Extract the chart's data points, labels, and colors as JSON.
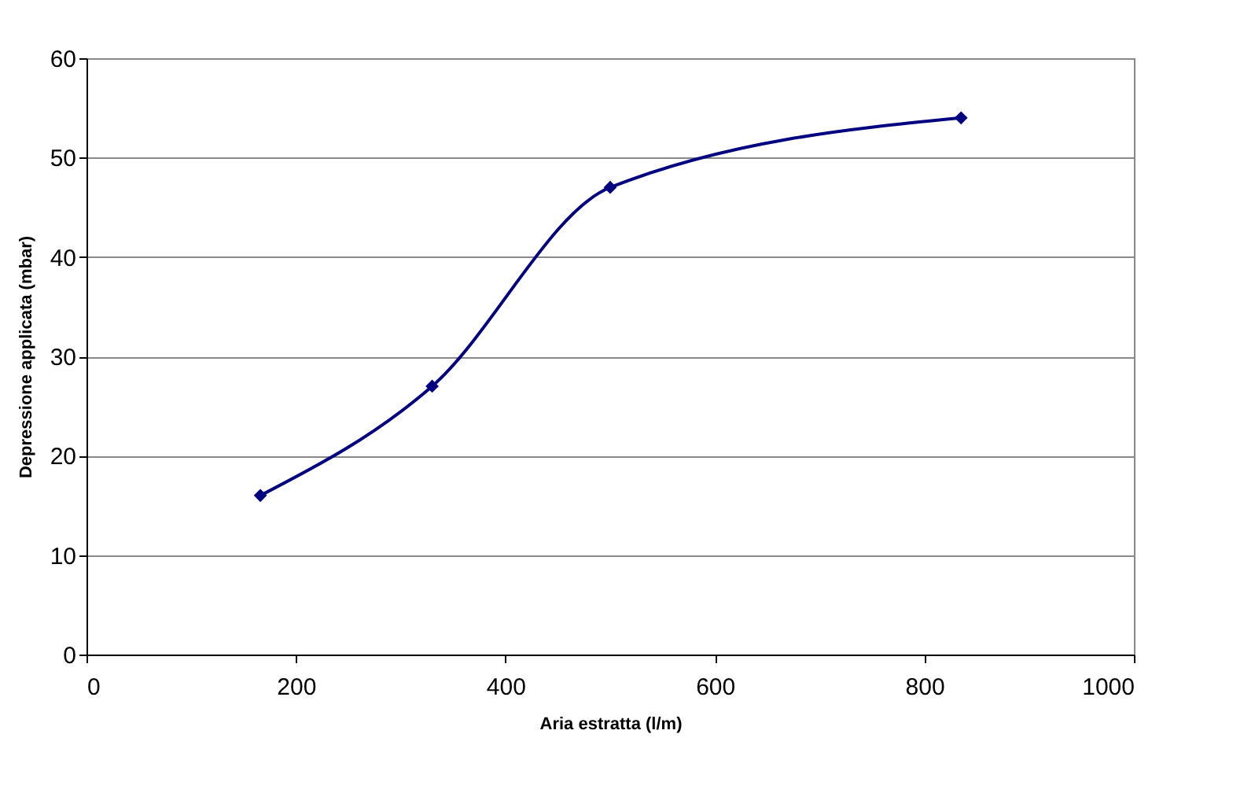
{
  "chart_data": {
    "type": "line",
    "xlabel": "Aria estratta (l/m)",
    "ylabel": "Depressione applicata (mbar)",
    "x": [
      166,
      330,
      500,
      835
    ],
    "series": [
      {
        "color": "#000080",
        "values": [
          16,
          27,
          47,
          54
        ]
      }
    ],
    "xlim": [
      0,
      1000
    ],
    "xticks": [
      0,
      200,
      400,
      600,
      800,
      1000
    ],
    "ylim": [
      0,
      60
    ],
    "yticks": [
      0,
      10,
      20,
      30,
      40,
      50,
      60
    ],
    "grid": "y",
    "legend": false,
    "marker": "diamond",
    "line_style": "solid"
  }
}
